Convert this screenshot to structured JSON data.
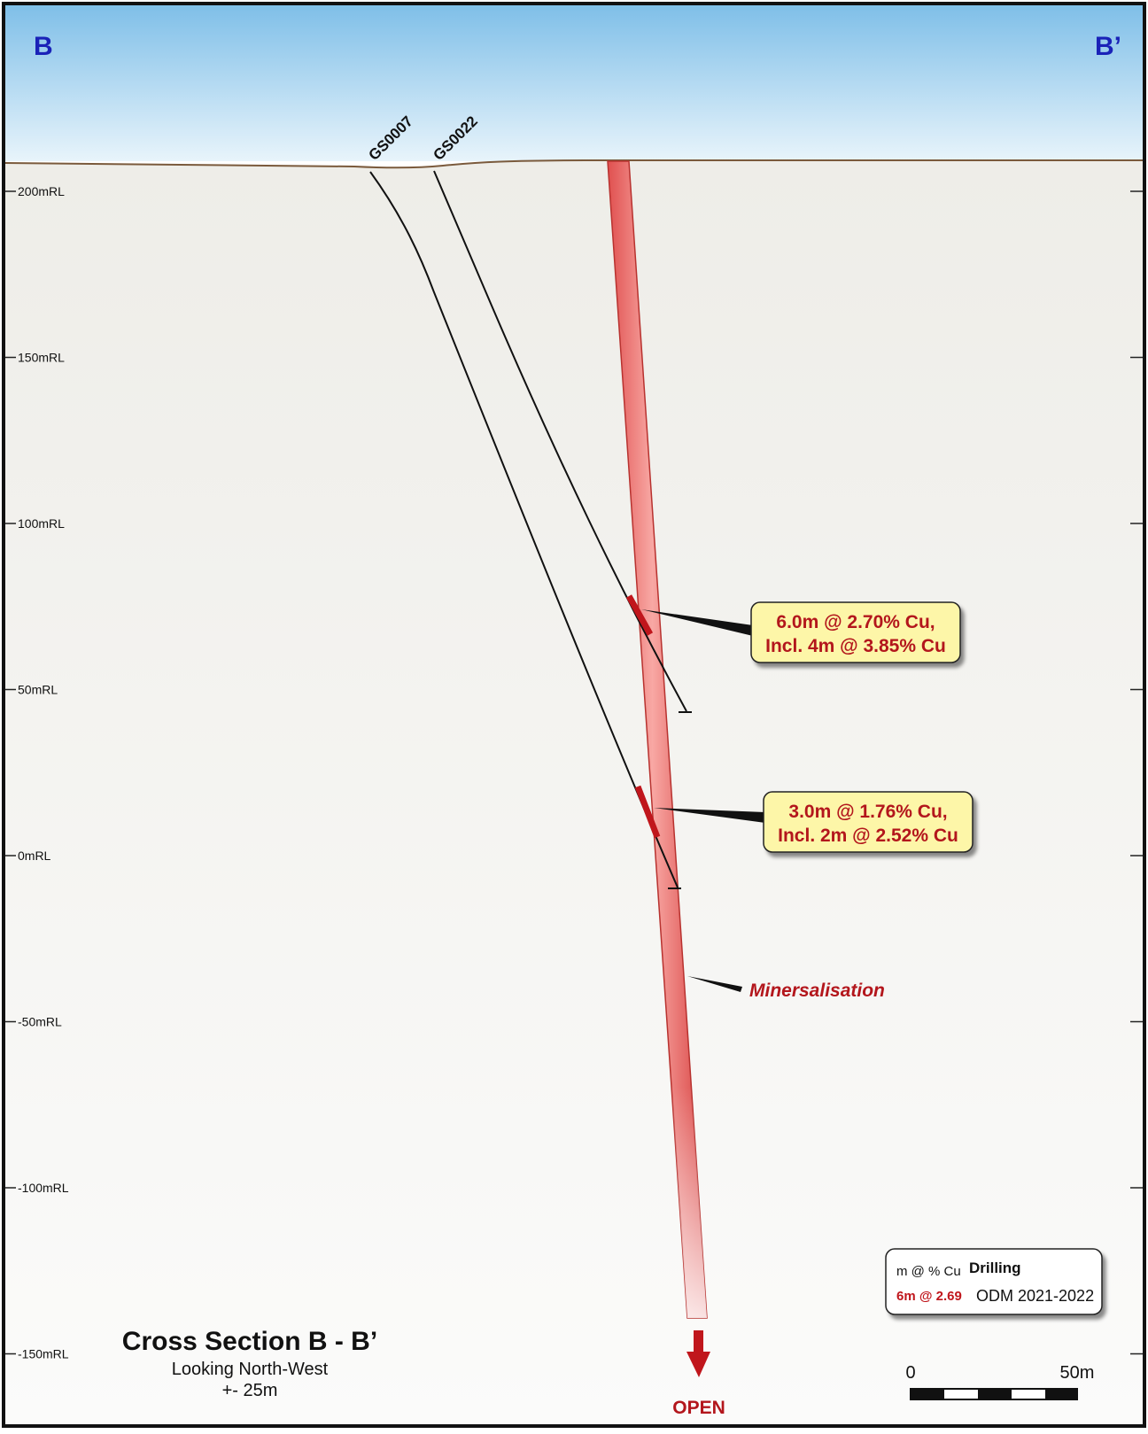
{
  "section": {
    "left_label": "B",
    "right_label": "B’",
    "title": "Cross Section B - B’",
    "subtitle": "Looking North-West",
    "width_note": "+- 25m",
    "open_label": "OPEN",
    "mineralisation_label": "Minersalisation"
  },
  "elevation_axis": {
    "ticks": [
      {
        "value": 200,
        "label": "200mRL"
      },
      {
        "value": 150,
        "label": "150mRL"
      },
      {
        "value": 100,
        "label": "100mRL"
      },
      {
        "value": 50,
        "label": "50mRL"
      },
      {
        "value": 0,
        "label": "0mRL"
      },
      {
        "value": -50,
        "label": "-50mRL"
      },
      {
        "value": -100,
        "label": "-100mRL"
      },
      {
        "value": -150,
        "label": "-150mRL"
      }
    ]
  },
  "drillholes": [
    {
      "id": "GS0007"
    },
    {
      "id": "GS0022"
    }
  ],
  "intercepts": [
    {
      "hole": "GS0022",
      "line1": "6.0m @ 2.70% Cu,",
      "line2": "Incl. 4m @ 3.85% Cu"
    },
    {
      "hole": "GS0007",
      "line1": "3.0m @ 1.76% Cu,",
      "line2": "Incl. 2m @ 2.52% Cu"
    }
  ],
  "legend": {
    "key_label": "m @ % Cu",
    "drilling_label": "Drilling",
    "example_value": "6m @ 2.69",
    "program_label": "ODM 2021-2022"
  },
  "scale_bar": {
    "start_label": "0",
    "end_label": "50m"
  },
  "colors": {
    "sky_top": "#7fbfe8",
    "sky_bottom": "#e6f3fb",
    "ground": "#f0efeb",
    "label_blue": "#1a22b8",
    "intercept_red": "#c0161c",
    "callout_fill": "#fdf6a8"
  }
}
